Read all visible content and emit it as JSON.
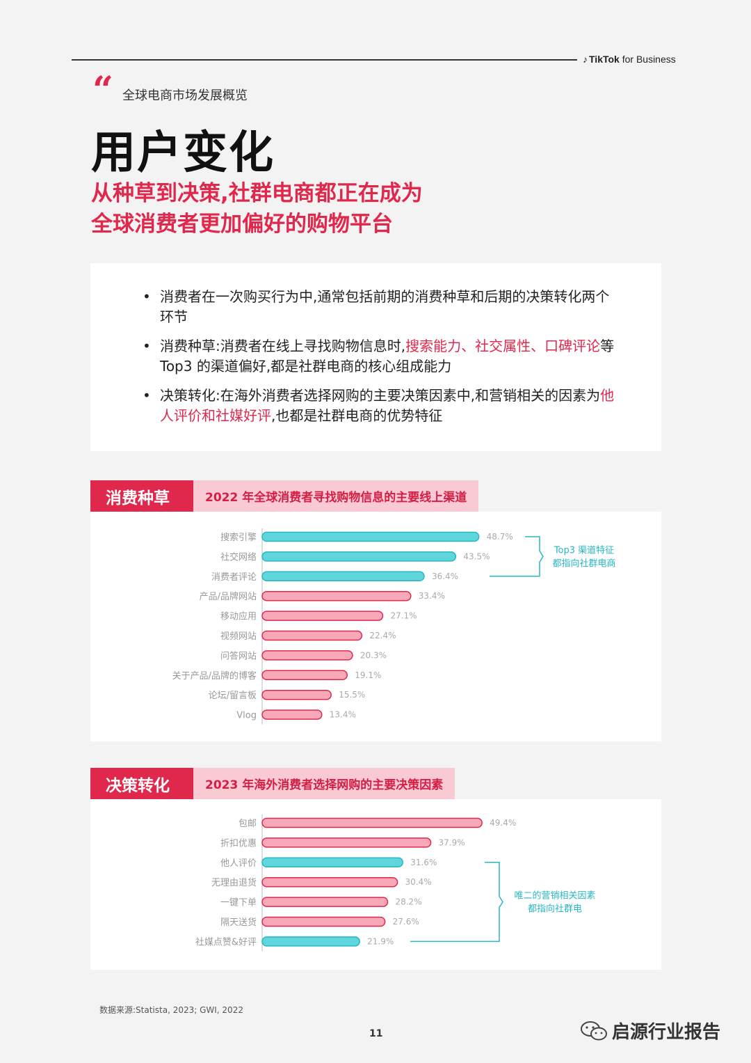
{
  "header": {
    "brand_name": "TikTok",
    "brand_suffix": "for Business",
    "brand_icon": "tiktok-note-icon"
  },
  "section_label": "全球电商市场发展概览",
  "title": "用户变化",
  "subtitle_lines": [
    "从种草到决策,社群电商都正在成为",
    "全球消费者更加偏好的购物平台"
  ],
  "bullets": [
    {
      "text": "消费者在一次购买行为中,通常包括前期的消费种草和后期的决策转化两个环节"
    },
    {
      "pre": "消费种草:消费者在线上寻找购物信息时,",
      "hl": "搜索能力、社交属性、口碑评论",
      "post": "等 Top3 的渠道偏好,都是社群电商的核心组成能力"
    },
    {
      "pre": "决策转化:在海外消费者选择网购的主要决策因素中,和营销相关的因素为",
      "hl": "他人评价和社媒好评",
      "post": ",也都是社群电商的优势特征"
    }
  ],
  "chart1": {
    "tag": "消费种草",
    "heading": "2022 年全球消费者寻找购物信息的主要线上渠道",
    "annotation_lines": [
      "Top3 渠道特征",
      "都指向社群电商"
    ]
  },
  "chart2": {
    "tag": "决策转化",
    "heading": "2023 年海外消费者选择网购的主要决策因素",
    "annotation_lines": [
      "唯二的营销相关因素",
      "都指向社群电"
    ]
  },
  "chart_data": [
    {
      "type": "bar",
      "orientation": "horizontal",
      "title": "2022 年全球消费者寻找购物信息的主要线上渠道",
      "categories": [
        "搜索引擎",
        "社交网络",
        "消费者评论",
        "产品/品牌网站",
        "移动应用",
        "视频网站",
        "问答网站",
        "关于产品/品牌的博客",
        "论坛/留言板",
        "Vlog"
      ],
      "values": [
        48.7,
        43.5,
        36.4,
        33.4,
        27.1,
        22.4,
        20.3,
        19.1,
        15.5,
        13.4
      ],
      "labels": [
        "48.7%",
        "43.5%",
        "36.4%",
        "33.4%",
        "27.1%",
        "22.4%",
        "20.3%",
        "19.1%",
        "15.5%",
        "13.4%"
      ],
      "highlighted": [
        true,
        true,
        true,
        false,
        false,
        false,
        false,
        false,
        false,
        false
      ],
      "xlim": [
        0,
        50
      ]
    },
    {
      "type": "bar",
      "orientation": "horizontal",
      "title": "2023 年海外消费者选择网购的主要决策因素",
      "categories": [
        "包邮",
        "折扣优惠",
        "他人评价",
        "无理由退货",
        "一键下单",
        "隔天送货",
        "社媒点赞&好评"
      ],
      "values": [
        49.4,
        37.9,
        31.6,
        30.4,
        28.2,
        27.6,
        21.9
      ],
      "labels": [
        "49.4%",
        "37.9%",
        "31.6%",
        "30.4%",
        "28.2%",
        "27.6%",
        "21.9%"
      ],
      "highlighted": [
        false,
        false,
        true,
        false,
        false,
        false,
        true
      ],
      "xlim": [
        0,
        50
      ]
    }
  ],
  "colors": {
    "accent": "#e0284d",
    "highlight_bar": "#5fd6dc",
    "normal_bar": "#f7a9b9",
    "bar_stroke_pink": "#e0284d",
    "bar_stroke_cyan": "#27b7c2",
    "annotation": "#27b7c2"
  },
  "source": "数据来源:Statista, 2023; GWI, 2022",
  "page_number": "11",
  "watermark": "启源行业报告"
}
